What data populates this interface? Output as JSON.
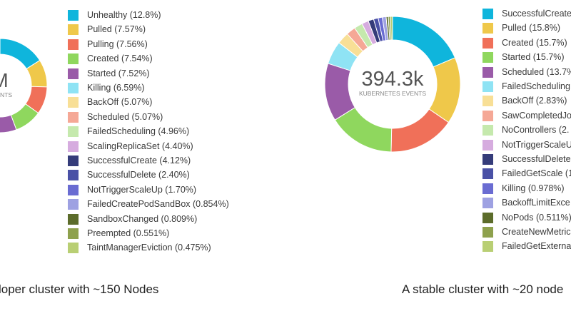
{
  "chart_data": [
    {
      "type": "pie",
      "style": "donut",
      "center_value": "M",
      "center_label": "EVENTS",
      "caption": "loper cluster with ~150 Nodes",
      "series": [
        {
          "label": "Unhealthy (12.8%)",
          "value": 12.8,
          "color": "#0fb5dc"
        },
        {
          "label": "Pulled (7.57%)",
          "value": 7.57,
          "color": "#efc84a"
        },
        {
          "label": "Pulling (7.56%)",
          "value": 7.56,
          "color": "#f07059"
        },
        {
          "label": "Created (7.54%)",
          "value": 7.54,
          "color": "#8fd75e"
        },
        {
          "label": "Started (7.52%)",
          "value": 7.52,
          "color": "#9a5ba8"
        },
        {
          "label": "Killing (6.59%)",
          "value": 6.59,
          "color": "#8fe3f4"
        },
        {
          "label": "BackOff (5.07%)",
          "value": 5.07,
          "color": "#f8df96"
        },
        {
          "label": "Scheduled (5.07%)",
          "value": 5.07,
          "color": "#f5a896"
        },
        {
          "label": "FailedScheduling (4.96%)",
          "value": 4.96,
          "color": "#c5e9ad"
        },
        {
          "label": "ScalingReplicaSet (4.40%)",
          "value": 4.4,
          "color": "#d6acdf"
        },
        {
          "label": "SuccessfulCreate (4.12%)",
          "value": 4.12,
          "color": "#353c7a"
        },
        {
          "label": "SuccessfulDelete (2.40%)",
          "value": 2.4,
          "color": "#4a51a6"
        },
        {
          "label": "NotTriggerScaleUp (1.70%)",
          "value": 1.7,
          "color": "#6a6cd2"
        },
        {
          "label": "FailedCreatePodSandBox (0.854%)",
          "value": 0.854,
          "color": "#9ea1e2"
        },
        {
          "label": "SandboxChanged (0.809%)",
          "value": 0.809,
          "color": "#5c6c2b"
        },
        {
          "label": "Preempted (0.551%)",
          "value": 0.551,
          "color": "#8ea14d"
        },
        {
          "label": "TaintManagerEviction (0.475%)",
          "value": 0.475,
          "color": "#b9cf74"
        }
      ]
    },
    {
      "type": "pie",
      "style": "donut",
      "center_value": "394.3k",
      "center_label": "KUBERNETES EVENTS",
      "caption": "A stable cluster with ~20 node",
      "series": [
        {
          "label": "SuccessfulCreate",
          "value": 18.5,
          "color": "#0fb5dc"
        },
        {
          "label": "Pulled (15.8%)",
          "value": 15.8,
          "color": "#efc84a"
        },
        {
          "label": "Created (15.7%)",
          "value": 15.7,
          "color": "#f07059"
        },
        {
          "label": "Started (15.7%)",
          "value": 15.7,
          "color": "#8fd75e"
        },
        {
          "label": "Scheduled (13.7%",
          "value": 13.7,
          "color": "#9a5ba8"
        },
        {
          "label": "FailedScheduling",
          "value": 5.5,
          "color": "#8fe3f4"
        },
        {
          "label": "BackOff (2.83%)",
          "value": 2.83,
          "color": "#f8df96"
        },
        {
          "label": "SawCompletedJo",
          "value": 2.2,
          "color": "#f5a896"
        },
        {
          "label": "NoControllers (2.",
          "value": 2.0,
          "color": "#c5e9ad"
        },
        {
          "label": "NotTriggerScaleU",
          "value": 1.6,
          "color": "#d6acdf"
        },
        {
          "label": "SuccessfulDelete",
          "value": 1.3,
          "color": "#353c7a"
        },
        {
          "label": "FailedGetScale (1",
          "value": 1.1,
          "color": "#4a51a6"
        },
        {
          "label": "Killing (0.978%)",
          "value": 0.978,
          "color": "#6a6cd2"
        },
        {
          "label": "BackoffLimitExce",
          "value": 0.9,
          "color": "#9ea1e2"
        },
        {
          "label": "NoPods (0.511%)",
          "value": 0.511,
          "color": "#5c6c2b"
        },
        {
          "label": "CreateNewMetric",
          "value": 0.5,
          "color": "#8ea14d"
        },
        {
          "label": "FailedGetExterna",
          "value": 0.5,
          "color": "#b9cf74"
        }
      ]
    }
  ]
}
